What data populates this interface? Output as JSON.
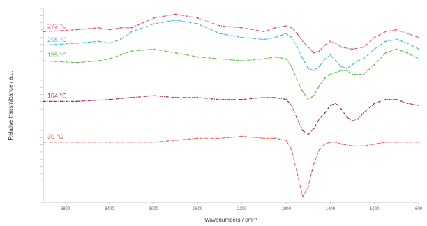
{
  "chart_data": {
    "type": "line",
    "title": "",
    "xlabel": "Wavenumbers / cm⁻¹",
    "ylabel": "Relative transmittance / a.u.",
    "xlim": [
      4000,
      600
    ],
    "ylim": [
      0,
      1
    ],
    "grid": false,
    "x_ticks": [
      3800,
      3400,
      3000,
      2600,
      2200,
      1800,
      1400,
      1000,
      600
    ],
    "x_tick_labels": [
      "3800",
      "3400",
      "3000",
      "2600",
      "2200",
      "1800",
      "1400",
      "1000",
      "600"
    ],
    "series": [
      {
        "name": "273 °C",
        "color": "#e0507a",
        "x": [
          4000,
          3700,
          3500,
          3400,
          3300,
          3200,
          3000,
          2800,
          2600,
          2400,
          2200,
          2000,
          1900,
          1800,
          1750,
          1700,
          1650,
          1600,
          1550,
          1500,
          1450,
          1400,
          1350,
          1300,
          1200,
          1100,
          1000,
          900,
          800,
          700,
          600
        ],
        "y": [
          0.88,
          0.89,
          0.9,
          0.89,
          0.9,
          0.9,
          0.95,
          0.97,
          0.95,
          0.91,
          0.9,
          0.88,
          0.9,
          0.91,
          0.9,
          0.87,
          0.83,
          0.8,
          0.77,
          0.78,
          0.81,
          0.83,
          0.82,
          0.8,
          0.79,
          0.8,
          0.85,
          0.88,
          0.89,
          0.87,
          0.85
        ]
      },
      {
        "name": "205 °C",
        "color": "#3db8e0",
        "x": [
          4000,
          3700,
          3500,
          3400,
          3300,
          3200,
          3000,
          2800,
          2600,
          2400,
          2200,
          2000,
          1900,
          1800,
          1750,
          1700,
          1650,
          1600,
          1550,
          1500,
          1450,
          1400,
          1350,
          1300,
          1250,
          1200,
          1150,
          1100,
          1000,
          900,
          800,
          700,
          600
        ],
        "y": [
          0.81,
          0.82,
          0.83,
          0.82,
          0.84,
          0.88,
          0.92,
          0.94,
          0.92,
          0.87,
          0.85,
          0.84,
          0.85,
          0.87,
          0.85,
          0.8,
          0.74,
          0.69,
          0.68,
          0.7,
          0.74,
          0.76,
          0.73,
          0.7,
          0.69,
          0.71,
          0.73,
          0.74,
          0.79,
          0.83,
          0.84,
          0.82,
          0.79
        ]
      },
      {
        "name": "155 °C",
        "color": "#66b84a",
        "x": [
          4000,
          3700,
          3500,
          3400,
          3300,
          3200,
          3000,
          2800,
          2600,
          2400,
          2200,
          2000,
          1900,
          1800,
          1750,
          1700,
          1650,
          1600,
          1550,
          1500,
          1450,
          1400,
          1350,
          1300,
          1250,
          1200,
          1100,
          1000,
          900,
          800,
          700,
          600
        ],
        "y": [
          0.73,
          0.72,
          0.73,
          0.74,
          0.76,
          0.78,
          0.79,
          0.77,
          0.75,
          0.74,
          0.73,
          0.74,
          0.75,
          0.74,
          0.7,
          0.63,
          0.57,
          0.53,
          0.55,
          0.6,
          0.64,
          0.66,
          0.67,
          0.68,
          0.68,
          0.66,
          0.66,
          0.71,
          0.77,
          0.79,
          0.77,
          0.74
        ]
      },
      {
        "name": "104 °C",
        "color": "#9a2a6e",
        "x": [
          4000,
          3700,
          3400,
          3200,
          3000,
          2800,
          2600,
          2400,
          2200,
          2000,
          1900,
          1800,
          1750,
          1700,
          1650,
          1600,
          1550,
          1500,
          1450,
          1400,
          1350,
          1300,
          1250,
          1200,
          1150,
          1100,
          1000,
          900,
          800,
          700,
          600
        ],
        "y": [
          0.52,
          0.52,
          0.53,
          0.54,
          0.55,
          0.54,
          0.54,
          0.53,
          0.53,
          0.54,
          0.54,
          0.53,
          0.5,
          0.43,
          0.37,
          0.35,
          0.38,
          0.43,
          0.46,
          0.5,
          0.51,
          0.48,
          0.44,
          0.42,
          0.43,
          0.46,
          0.51,
          0.53,
          0.53,
          0.51,
          0.5
        ]
      },
      {
        "name": "30 °C",
        "color": "#e8605a",
        "x": [
          4000,
          3700,
          3400,
          3200,
          3000,
          2800,
          2600,
          2400,
          2200,
          2000,
          1900,
          1800,
          1750,
          1700,
          1650,
          1600,
          1550,
          1500,
          1450,
          1400,
          1350,
          1300,
          1200,
          1100,
          1000,
          900,
          800,
          700,
          600
        ],
        "y": [
          0.31,
          0.31,
          0.31,
          0.31,
          0.31,
          0.32,
          0.33,
          0.33,
          0.34,
          0.33,
          0.33,
          0.32,
          0.27,
          0.15,
          0.03,
          0.08,
          0.2,
          0.27,
          0.3,
          0.31,
          0.31,
          0.3,
          0.29,
          0.29,
          0.3,
          0.31,
          0.31,
          0.31,
          0.31
        ]
      }
    ]
  }
}
